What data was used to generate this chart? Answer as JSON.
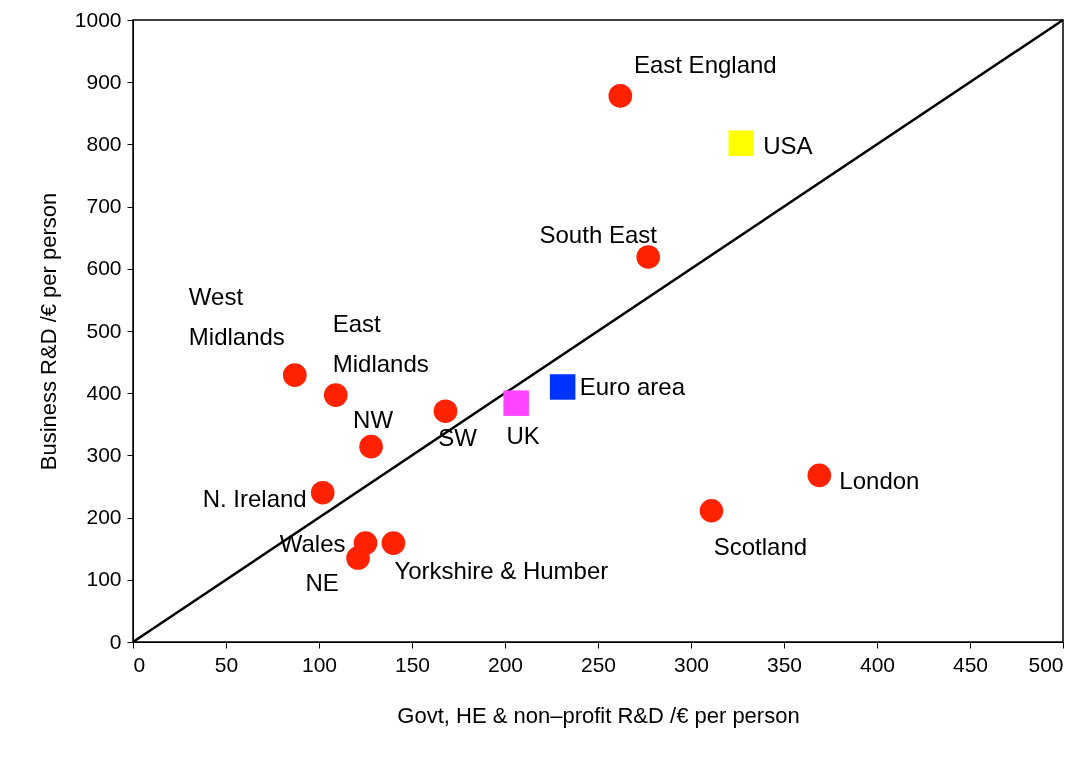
{
  "chart_data": {
    "type": "scatter",
    "xlabel": "Govt, HE & non–profit R&D /€ per person",
    "ylabel": "Business R&D /€ per person",
    "xlim": [
      0,
      500
    ],
    "xticks": [
      0,
      50,
      100,
      150,
      200,
      250,
      300,
      350,
      400,
      450,
      500
    ],
    "ylim": [
      0,
      1000
    ],
    "yticks": [
      0,
      100,
      200,
      300,
      400,
      500,
      600,
      700,
      800,
      900,
      1000
    ],
    "grid": false,
    "series": [
      {
        "type": "line",
        "color": "#000000",
        "marker": "none",
        "x": [
          0,
          500
        ],
        "values": [
          0,
          1000
        ]
      },
      {
        "color": "#ff2200",
        "marker": "circle",
        "x": [
          262,
          277,
          87,
          109,
          128,
          168,
          102,
          125,
          121,
          140,
          311,
          369
        ],
        "values": [
          878,
          619,
          429,
          397,
          314,
          371,
          240,
          159,
          135,
          159,
          211,
          268
        ]
      },
      {
        "type": "scatter",
        "name": "USA",
        "color": "#ffff00",
        "marker": "square",
        "x": [
          327
        ],
        "values": [
          802
        ]
      },
      {
        "type": "scatter",
        "name": "Euro area",
        "color": "#0033ff",
        "marker": "square",
        "x": [
          231
        ],
        "values": [
          410
        ]
      },
      {
        "type": "scatter",
        "name": "UK",
        "color": "#ff44ff",
        "marker": "square",
        "x": [
          206
        ],
        "values": [
          384
        ]
      }
    ],
    "annotations": [
      {
        "text": "East England",
        "x": 262,
        "y": 878
      },
      {
        "text": "South East",
        "x": 277,
        "y": 619
      },
      {
        "text": "West\nMidlands",
        "x": 87,
        "y": 429
      },
      {
        "text": "East\nMidlands",
        "x": 109,
        "y": 397
      },
      {
        "text": "NW",
        "x": 128,
        "y": 314
      },
      {
        "text": "SW",
        "x": 168,
        "y": 371
      },
      {
        "text": "N. Ireland",
        "x": 102,
        "y": 240
      },
      {
        "text": "Wales",
        "x": 125,
        "y": 159
      },
      {
        "text": "NE",
        "x": 121,
        "y": 135
      },
      {
        "text": "Yorkshire & Humber",
        "x": 140,
        "y": 159
      },
      {
        "text": "Scotland",
        "x": 311,
        "y": 211
      },
      {
        "text": "London",
        "x": 369,
        "y": 268
      }
    ]
  }
}
